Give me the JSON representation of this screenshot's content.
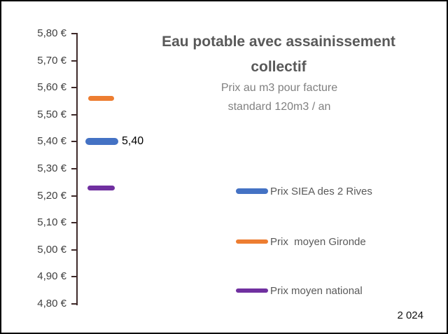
{
  "chart_data": {
    "type": "line",
    "title": "Eau potable avec assainissement collectif",
    "subtitle": "Prix au m3 pour facture standard 120m3 / an",
    "ylabel": "",
    "xlabel": "",
    "ylim": [
      4.8,
      5.8
    ],
    "ytick_step": 0.1,
    "yticks": [
      "5,80 €",
      "5,70 €",
      "5,60 €",
      "5,50 €",
      "5,40 €",
      "5,30 €",
      "5,20 €",
      "5,10 €",
      "5,00 €",
      "4,90 €",
      "4,80 €"
    ],
    "grid": false,
    "legend_position": "right-middle",
    "marker_style": "horizontal-dash",
    "series": [
      {
        "name": "Prix SIEA des 2 Rives",
        "value": 5.4,
        "color": "#4472C4",
        "data_label": "5,40"
      },
      {
        "name": "Prix  moyen Gironde",
        "value": 5.56,
        "color": "#ED7D31",
        "data_label": ""
      },
      {
        "name": "Prix moyen national",
        "value": 5.23,
        "color": "#7030A0",
        "data_label": ""
      }
    ],
    "footer_year": "2 024"
  }
}
